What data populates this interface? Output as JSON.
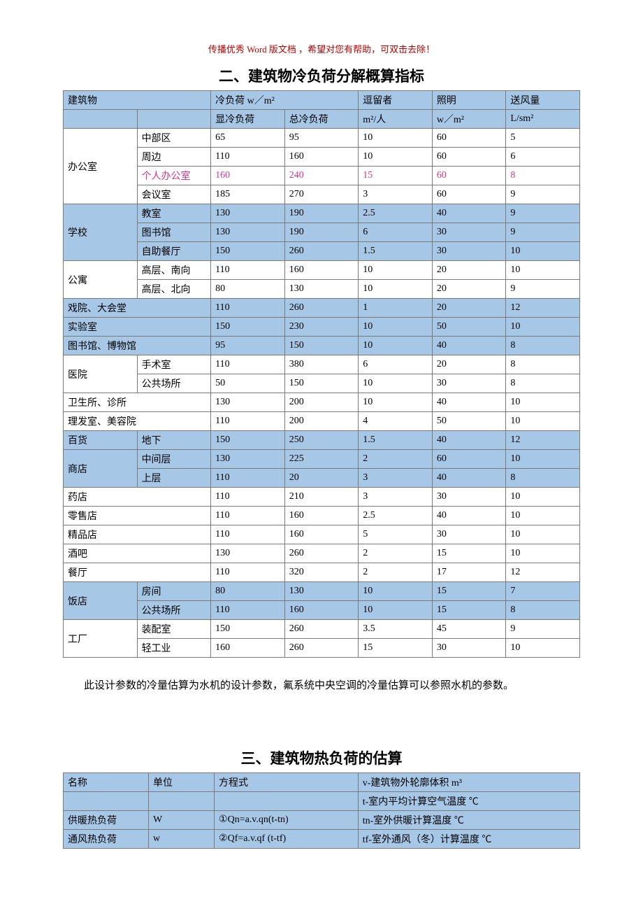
{
  "top_note": "传播优秀 Word 版文档 ，希望对您有帮助，可双击去除！",
  "section2_title": "二、建筑物冷负荷分解概算指标",
  "table1": {
    "header": {
      "building": "建筑物",
      "cooling_load": "冷负荷 w／m²",
      "sensible": "显冷负荷",
      "total": "总冷负荷",
      "occupant": "逗留者",
      "occupant_unit": "m²/人",
      "lighting": "照明",
      "lighting_unit": "w／m²",
      "airflow": "送风量",
      "airflow_unit": "L/sm²"
    },
    "groups": [
      {
        "cat": "办公室",
        "rows": [
          {
            "sub": "中部区",
            "v": [
              "65",
              "95",
              "10",
              "60",
              "5"
            ],
            "hi": false,
            "pink": false
          },
          {
            "sub": "周边",
            "v": [
              "110",
              "160",
              "10",
              "60",
              "6"
            ],
            "hi": false,
            "pink": false
          },
          {
            "sub": "个人办公室",
            "v": [
              "160",
              "240",
              "15",
              "60",
              "8"
            ],
            "hi": false,
            "pink": true
          },
          {
            "sub": "会议室",
            "v": [
              "185",
              "270",
              "3",
              "60",
              "9"
            ],
            "hi": false,
            "pink": false
          }
        ]
      },
      {
        "cat": "学校",
        "rows": [
          {
            "sub": "教室",
            "v": [
              "130",
              "190",
              "2.5",
              "40",
              "9"
            ],
            "hi": true,
            "pink": false
          },
          {
            "sub": "图书馆",
            "v": [
              "130",
              "190",
              "6",
              "30",
              "9"
            ],
            "hi": true,
            "pink": false
          },
          {
            "sub": "自助餐厅",
            "v": [
              "150",
              "260",
              "1.5",
              "30",
              "10"
            ],
            "hi": true,
            "pink": false
          }
        ]
      },
      {
        "cat": "公寓",
        "rows": [
          {
            "sub": "高层、南向",
            "v": [
              "110",
              "160",
              "10",
              "20",
              "10"
            ],
            "hi": false,
            "pink": false
          },
          {
            "sub": "高层、北向",
            "v": [
              "80",
              "130",
              "10",
              "20",
              "9"
            ],
            "hi": false,
            "pink": false
          }
        ]
      },
      {
        "cat": "戏院、大会堂",
        "span": true,
        "rows": [
          {
            "sub": "",
            "v": [
              "110",
              "260",
              "1",
              "20",
              "12"
            ],
            "hi": true,
            "pink": false
          }
        ]
      },
      {
        "cat": "实验室",
        "span": true,
        "rows": [
          {
            "sub": "",
            "v": [
              "150",
              "230",
              "10",
              "50",
              "10"
            ],
            "hi": true,
            "pink": false
          }
        ]
      },
      {
        "cat": "图书馆、博物馆",
        "span": true,
        "rows": [
          {
            "sub": "",
            "v": [
              "95",
              "150",
              "10",
              "40",
              "8"
            ],
            "hi": true,
            "pink": false
          }
        ]
      },
      {
        "cat": "医院",
        "rows": [
          {
            "sub": "手术室",
            "v": [
              "110",
              "380",
              "6",
              "20",
              "8"
            ],
            "hi": false,
            "pink": false
          },
          {
            "sub": "公共场所",
            "v": [
              "50",
              "150",
              "10",
              "30",
              "8"
            ],
            "hi": false,
            "pink": false
          }
        ]
      },
      {
        "cat": "卫生所、诊所",
        "span": true,
        "rows": [
          {
            "sub": "",
            "v": [
              "130",
              "200",
              "10",
              "40",
              "10"
            ],
            "hi": false,
            "pink": false
          }
        ]
      },
      {
        "cat": "理发室、美容院",
        "span": true,
        "rows": [
          {
            "sub": "",
            "v": [
              "110",
              "200",
              "4",
              "50",
              "10"
            ],
            "hi": false,
            "pink": false
          }
        ]
      },
      {
        "cat": "百货",
        "cat2": "商店",
        "rows": [
          {
            "sub": "地下",
            "v": [
              "150",
              "250",
              "1.5",
              "40",
              "12"
            ],
            "hi": true,
            "pink": false
          },
          {
            "sub": "中间层",
            "v": [
              "130",
              "225",
              "2",
              "60",
              "10"
            ],
            "hi": true,
            "pink": false
          },
          {
            "sub": "上层",
            "v": [
              "110",
              "20",
              "3",
              "40",
              "8"
            ],
            "hi": true,
            "pink": false
          }
        ]
      },
      {
        "cat": "药店",
        "span": true,
        "rows": [
          {
            "sub": "",
            "v": [
              "110",
              "210",
              "3",
              "30",
              "10"
            ],
            "hi": false,
            "pink": false
          }
        ]
      },
      {
        "cat": "零售店",
        "span": true,
        "rows": [
          {
            "sub": "",
            "v": [
              "110",
              "160",
              "2.5",
              "40",
              "10"
            ],
            "hi": false,
            "pink": false
          }
        ]
      },
      {
        "cat": "精品店",
        "span": true,
        "rows": [
          {
            "sub": "",
            "v": [
              "110",
              "160",
              "5",
              "30",
              "10"
            ],
            "hi": false,
            "pink": false
          }
        ]
      },
      {
        "cat": "酒吧",
        "span": true,
        "rows": [
          {
            "sub": "",
            "v": [
              "130",
              "260",
              "2",
              "15",
              "10"
            ],
            "hi": false,
            "pink": false
          }
        ]
      },
      {
        "cat": "餐厅",
        "span": true,
        "rows": [
          {
            "sub": "",
            "v": [
              "110",
              "320",
              "2",
              "17",
              "12"
            ],
            "hi": false,
            "pink": false
          }
        ]
      },
      {
        "cat": "饭店",
        "rows": [
          {
            "sub": "房间",
            "v": [
              "80",
              "130",
              "10",
              "15",
              "7"
            ],
            "hi": true,
            "pink": false
          },
          {
            "sub": "公共场所",
            "v": [
              "110",
              "160",
              "10",
              "15",
              "8"
            ],
            "hi": true,
            "pink": false
          }
        ]
      },
      {
        "cat": "工厂",
        "rows": [
          {
            "sub": "装配室",
            "v": [
              "150",
              "260",
              "3.5",
              "45",
              "9"
            ],
            "hi": false,
            "pink": false
          },
          {
            "sub": "轻工业",
            "v": [
              "160",
              "260",
              "15",
              "30",
              "10"
            ],
            "hi": false,
            "pink": false
          }
        ]
      }
    ]
  },
  "body_text": "此设计参数的冷量估算为水机的设计参数，氟系统中央空调的冷量估算可以参照水机的参数。",
  "section3_title": "三、建筑物热负荷的估算",
  "table2": {
    "header": {
      "name": "名称",
      "unit": "单位",
      "formula": "方程式"
    },
    "legend": [
      "v-建筑物外轮廓体积 m³",
      "t-室内平均计算空气温度 ℃",
      "tn-室外供暖计算温度 ℃",
      "tf-室外通风（冬）计算温度 ℃"
    ],
    "rows": [
      {
        "name": "供暖热负荷",
        "unit": "W",
        "formula": "①Qn=a.v.qn(t-tn)"
      },
      {
        "name": "通风热负荷",
        "unit": "w",
        "formula": "②Qf=a.v.qf (t-tf)"
      }
    ]
  },
  "colors": {
    "highlight": "#a7c7e7",
    "border": "#7a7a7a",
    "pink": "#d63384",
    "top_note": "#c00000"
  }
}
